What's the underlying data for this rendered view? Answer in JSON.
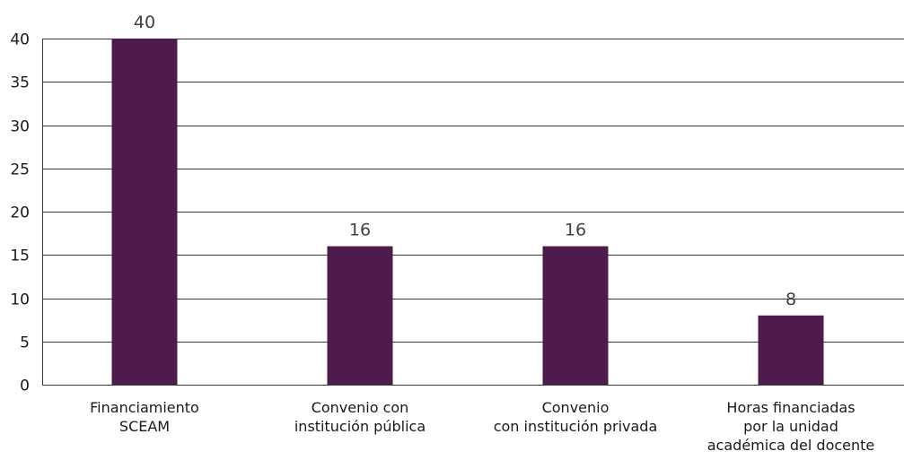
{
  "chart_data": {
    "type": "bar",
    "categories": [
      [
        "Financiamiento",
        "SCEAM"
      ],
      [
        "Convenio con",
        "institución pública"
      ],
      [
        "Convenio",
        "con institución privada"
      ],
      [
        "Horas financiadas",
        "por la unidad",
        "académica del docente"
      ]
    ],
    "values": [
      40,
      16,
      16,
      8
    ],
    "data_labels": [
      "40",
      "16",
      "16",
      "8"
    ],
    "ylim": [
      0,
      40
    ],
    "yticks": [
      "0",
      "5",
      "10",
      "15",
      "20",
      "25",
      "30",
      "35",
      "40"
    ],
    "title": "",
    "xlabel": "",
    "ylabel": "",
    "grid": true,
    "bar_color": "#4e1c4c"
  }
}
